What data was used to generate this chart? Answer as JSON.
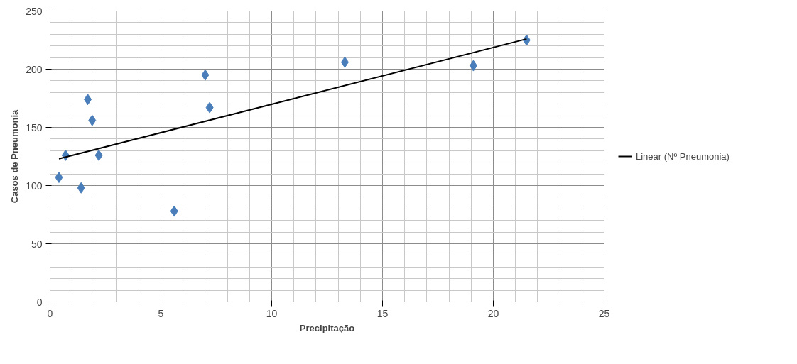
{
  "chart_data": {
    "type": "scatter",
    "xlabel": "Precipitação",
    "ylabel": "Casos de Pneumonia",
    "xlim": [
      0,
      25
    ],
    "xticks": [
      0,
      5,
      10,
      15,
      20,
      25
    ],
    "ylim": [
      0,
      250
    ],
    "yticks": [
      0,
      50,
      100,
      150,
      200,
      250
    ],
    "grid": true,
    "legend": "right",
    "series": [
      {
        "marker": "diamond",
        "color": "#4a7ebb",
        "x": [
          0.4,
          0.7,
          1.4,
          1.7,
          1.9,
          2.2,
          5.6,
          7.0,
          7.2,
          13.3,
          19.1,
          21.5
        ],
        "values": [
          107,
          126,
          98,
          174,
          156,
          126,
          78,
          195,
          167,
          206,
          203,
          225
        ]
      },
      {
        "type": "line",
        "name": "Linear (Nº Pneumonia)",
        "color": "#000000",
        "x": [
          0.4,
          21.5
        ],
        "values": [
          123,
          226
        ]
      }
    ]
  }
}
